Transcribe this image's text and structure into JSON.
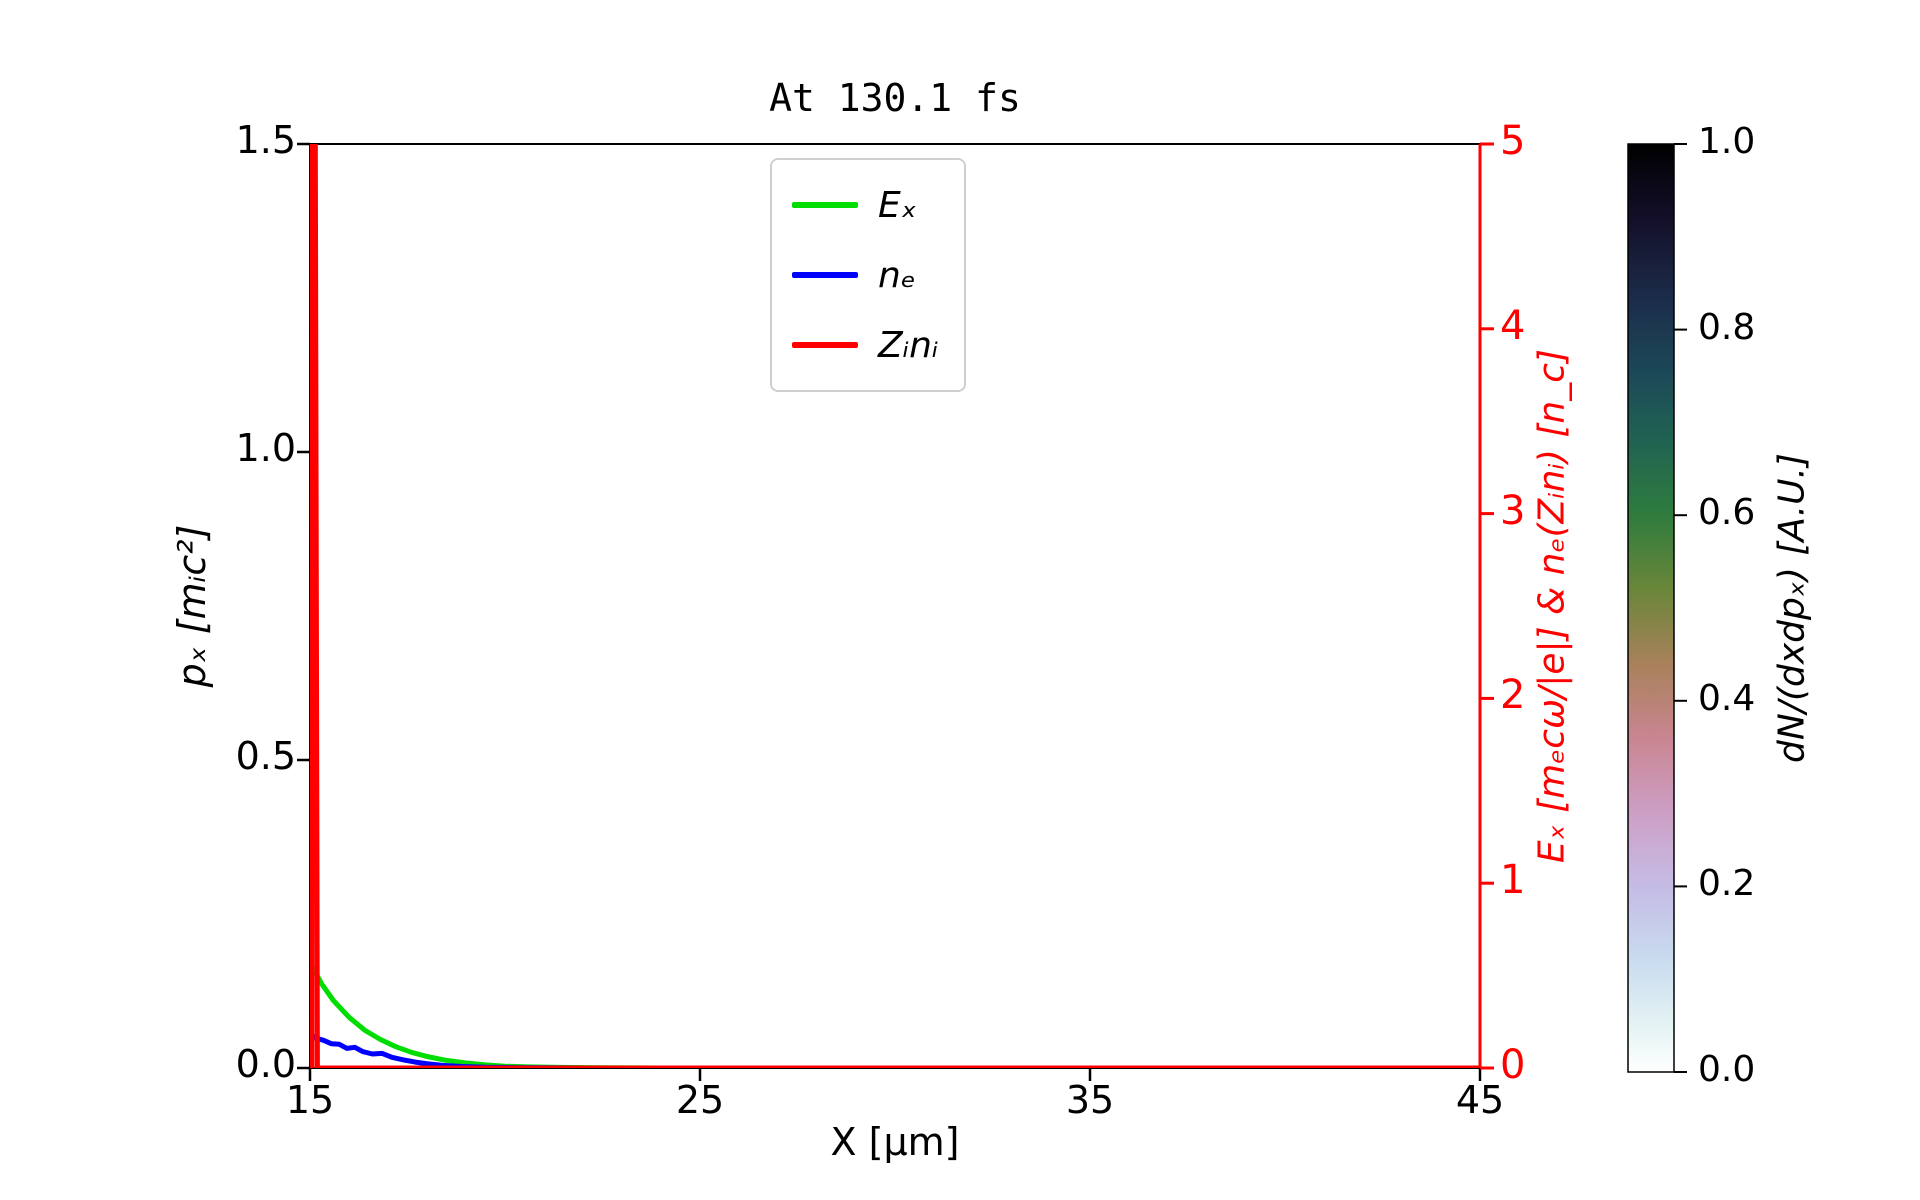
{
  "chart_data": {
    "type": "line",
    "title": "At 130.1 fs",
    "xlabel": "X [μm]",
    "ylabel_left": "pₓ [mᵢc²]",
    "ylabel_right": "Eₓ [mₑcω/|e|] & nₑ(Zᵢnᵢ) [n_c]",
    "xlim": [
      15,
      45
    ],
    "ylim_left": [
      0,
      1.5
    ],
    "ylim_right": [
      0,
      5
    ],
    "xticks": [
      "15",
      "25",
      "35",
      "45"
    ],
    "yticks_left": [
      "0.0",
      "0.5",
      "1.0",
      "1.5"
    ],
    "yticks_right": [
      "0",
      "1",
      "2",
      "3",
      "4",
      "5"
    ],
    "grid": false,
    "axis_colors": {
      "left": "#000000",
      "bottom": "#000000",
      "right": "#ff0000"
    },
    "legend_position": "upper-center",
    "series": [
      {
        "name": "Ex",
        "label": "Eₓ",
        "color": "#00dd00",
        "axis": "right",
        "x": [
          15.0,
          15.3,
          15.6,
          16.0,
          16.4,
          16.8,
          17.2,
          17.6,
          18.0,
          18.5,
          19.0,
          19.5,
          20.0,
          20.6,
          21.4,
          22.5,
          24.0,
          30.0,
          45.0
        ],
        "y": [
          0.57,
          0.455,
          0.365,
          0.275,
          0.205,
          0.155,
          0.115,
          0.085,
          0.062,
          0.041,
          0.027,
          0.017,
          0.01,
          0.006,
          0.003,
          0.001,
          0.0,
          0.0,
          0.0
        ]
      },
      {
        "name": "ne",
        "label": "nₑ",
        "color": "#0000ff",
        "axis": "right",
        "x": [
          15.0,
          15.15,
          15.35,
          15.55,
          15.75,
          15.95,
          16.15,
          16.35,
          16.6,
          16.85,
          17.1,
          17.4,
          17.7,
          18.0,
          18.4,
          18.9,
          19.5,
          20.2,
          21.0,
          22.0,
          45.0
        ],
        "y": [
          0.185,
          0.162,
          0.15,
          0.131,
          0.128,
          0.106,
          0.112,
          0.089,
          0.076,
          0.079,
          0.058,
          0.044,
          0.032,
          0.023,
          0.014,
          0.008,
          0.004,
          0.002,
          0.001,
          0.0,
          0.0
        ]
      },
      {
        "name": "Zini",
        "label": "Zᵢnᵢ",
        "color": "#ff0000",
        "axis": "right",
        "x": [
          15.05,
          15.05,
          15.13,
          15.19,
          16.0,
          45.0
        ],
        "y": [
          0.0,
          5.5,
          5.5,
          0.0,
          0.0,
          0.0
        ]
      }
    ],
    "colorbar": {
      "label": "dN/(dxdpₓ) [A.U.]",
      "ticks": [
        "1.0",
        "0.8",
        "0.6",
        "0.4",
        "0.2",
        "0.0"
      ],
      "range": [
        0,
        1
      ],
      "colormap": "cubehelix-dark-high",
      "gradient_top_to_bottom": [
        {
          "offset": 0.0,
          "color": "#000000"
        },
        {
          "offset": 0.08,
          "color": "#140f29"
        },
        {
          "offset": 0.16,
          "color": "#1b2a47"
        },
        {
          "offset": 0.24,
          "color": "#1c4658"
        },
        {
          "offset": 0.32,
          "color": "#206352"
        },
        {
          "offset": 0.4,
          "color": "#2f7c3e"
        },
        {
          "offset": 0.48,
          "color": "#6a8639"
        },
        {
          "offset": 0.56,
          "color": "#a8815a"
        },
        {
          "offset": 0.64,
          "color": "#c98591"
        },
        {
          "offset": 0.72,
          "color": "#cd9fc5"
        },
        {
          "offset": 0.8,
          "color": "#c5bce5"
        },
        {
          "offset": 0.88,
          "color": "#c9dcef"
        },
        {
          "offset": 0.95,
          "color": "#e4f3f3"
        },
        {
          "offset": 1.0,
          "color": "#ffffff"
        }
      ]
    }
  }
}
